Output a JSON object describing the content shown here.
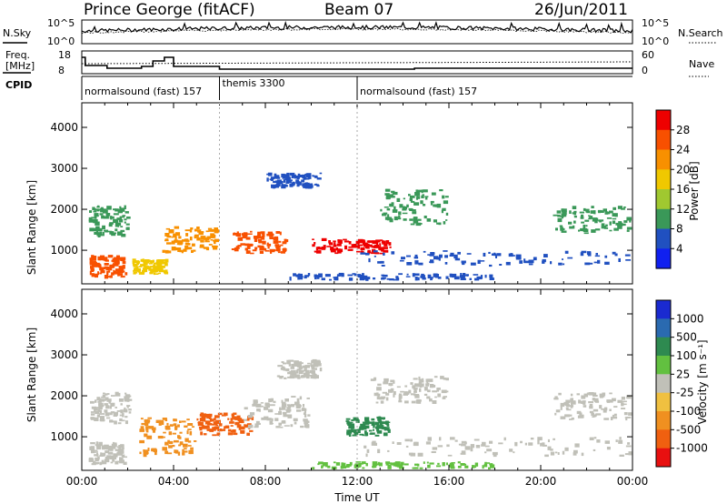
{
  "header": {
    "station": "Prince George (fitACF)",
    "beam": "Beam 07",
    "date": "26/Jun/2011"
  },
  "noise_panel": {
    "left_label": "N.Sky",
    "right_label": "N.Search",
    "left_ticks": [
      "10^5",
      "10^0"
    ],
    "right_ticks": [
      "10^5",
      "10^0"
    ]
  },
  "freq_panel": {
    "left_label_1": "Freq.",
    "left_label_2": "[MHz]",
    "right_label": "Nave",
    "left_ticks": [
      "18",
      "8"
    ],
    "right_ticks": [
      "60",
      "0"
    ]
  },
  "cpid": {
    "label": "CPID",
    "segments": [
      {
        "label": "normalsound (fast) 157",
        "start_hour": 0,
        "end_hour": 6
      },
      {
        "label": "themis 3300",
        "start_hour": 6,
        "end_hour": 12
      },
      {
        "label": "normalsound (fast) 157",
        "start_hour": 12,
        "end_hour": 24
      }
    ]
  },
  "power_colorbar": {
    "title": "Power [dB]",
    "ticks": [
      "28",
      "24",
      "20",
      "16",
      "12",
      "8",
      "4"
    ],
    "colors": [
      "#ee0000",
      "#f85000",
      "#f89000",
      "#f0c800",
      "#a0c830",
      "#3a9858",
      "#2050c0",
      "#1020f0"
    ]
  },
  "velocity_colorbar": {
    "title": "Velocity [m s⁻¹]",
    "ticks": [
      "1000",
      "500",
      "100",
      "25",
      "-25",
      "-100",
      "-500",
      "-1000"
    ],
    "colors": [
      "#1a2ad0",
      "#2a6ab0",
      "#2e8a50",
      "#62c040",
      "#c0c0b8",
      "#f0c040",
      "#f09020",
      "#f06010",
      "#e81010"
    ]
  },
  "chart_data": [
    {
      "type": "heatmap",
      "panel": "power",
      "ylabel": "Slant Range [km]",
      "xlabel": "",
      "ylim": [
        180,
        4600
      ],
      "yticks": [
        "1000",
        "2000",
        "3000",
        "4000"
      ],
      "xlim": [
        0,
        24
      ],
      "regions": [
        {
          "x0": 0.3,
          "x1": 2.2,
          "y0": 1300,
          "y1": 2100,
          "color": "#3a9858"
        },
        {
          "x0": 0.3,
          "x1": 2.0,
          "y0": 300,
          "y1": 900,
          "color": "#f85000"
        },
        {
          "x0": 2.2,
          "x1": 3.8,
          "y0": 400,
          "y1": 800,
          "color": "#f0c800"
        },
        {
          "x0": 3.5,
          "x1": 6.0,
          "y0": 900,
          "y1": 1600,
          "color": "#f89000"
        },
        {
          "x0": 6.5,
          "x1": 9.0,
          "y0": 900,
          "y1": 1500,
          "color": "#f85000"
        },
        {
          "x0": 8.0,
          "x1": 10.5,
          "y0": 2500,
          "y1": 2900,
          "color": "#2050c0"
        },
        {
          "x0": 10.0,
          "x1": 13.5,
          "y0": 900,
          "y1": 1300,
          "color": "#ee0000"
        },
        {
          "x0": 12.0,
          "x1": 24.0,
          "y0": 600,
          "y1": 1000,
          "color": "#2050c0"
        },
        {
          "x0": 13.0,
          "x1": 16.0,
          "y0": 1600,
          "y1": 2500,
          "color": "#3a9858"
        },
        {
          "x0": 20.5,
          "x1": 24.0,
          "y0": 1400,
          "y1": 2100,
          "color": "#3a9858"
        },
        {
          "x0": 9.0,
          "x1": 18.0,
          "y0": 250,
          "y1": 450,
          "color": "#2050c0"
        }
      ]
    },
    {
      "type": "heatmap",
      "panel": "velocity",
      "ylabel": "Slant Range [km]",
      "xlabel": "Time UT",
      "ylim": [
        180,
        4600
      ],
      "yticks": [
        "1000",
        "2000",
        "3000",
        "4000"
      ],
      "xlim": [
        0,
        24
      ],
      "xticks": [
        "00:00",
        "04:00",
        "08:00",
        "12:00",
        "16:00",
        "20:00",
        "00:00"
      ],
      "regions": [
        {
          "x0": 0.3,
          "x1": 2.2,
          "y0": 1300,
          "y1": 2100,
          "color": "#c0c0b8"
        },
        {
          "x0": 0.3,
          "x1": 2.0,
          "y0": 300,
          "y1": 900,
          "color": "#c0c0b8"
        },
        {
          "x0": 2.5,
          "x1": 5.0,
          "y0": 500,
          "y1": 1500,
          "color": "#f09020"
        },
        {
          "x0": 5.0,
          "x1": 7.5,
          "y0": 1000,
          "y1": 1600,
          "color": "#f06010"
        },
        {
          "x0": 7.0,
          "x1": 10.0,
          "y0": 1200,
          "y1": 2000,
          "color": "#c0c0b8"
        },
        {
          "x0": 8.5,
          "x1": 10.5,
          "y0": 2400,
          "y1": 2900,
          "color": "#c0c0b8"
        },
        {
          "x0": 11.5,
          "x1": 13.5,
          "y0": 1000,
          "y1": 1500,
          "color": "#2e8a50"
        },
        {
          "x0": 12.0,
          "x1": 24.0,
          "y0": 500,
          "y1": 1000,
          "color": "#c0c0b8"
        },
        {
          "x0": 12.5,
          "x1": 16.0,
          "y0": 1800,
          "y1": 2500,
          "color": "#c0c0b8"
        },
        {
          "x0": 20.5,
          "x1": 24.0,
          "y0": 1400,
          "y1": 2100,
          "color": "#c0c0b8"
        },
        {
          "x0": 10.0,
          "x1": 18.0,
          "y0": 200,
          "y1": 400,
          "color": "#62c040"
        }
      ]
    }
  ]
}
